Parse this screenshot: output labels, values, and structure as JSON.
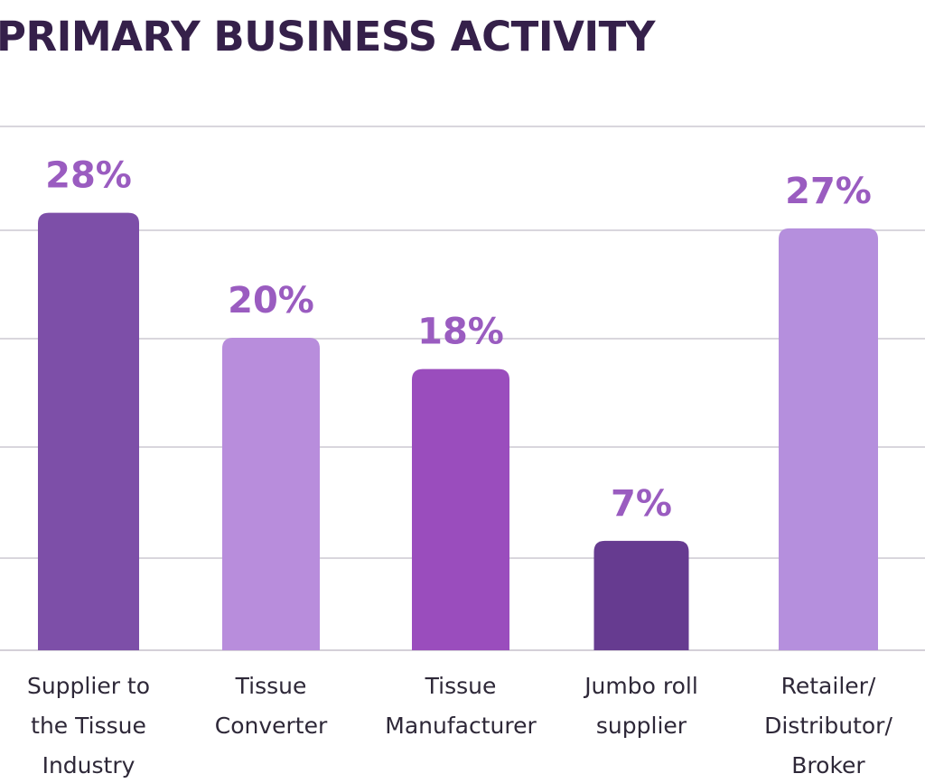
{
  "chart_data": {
    "type": "bar",
    "title": "PRIMARY BUSINESS ACTIVITY",
    "categories": [
      [
        "Supplier to",
        "the Tissue",
        "Industry"
      ],
      [
        "Tissue",
        "Converter"
      ],
      [
        "Tissue",
        "Manufacturer"
      ],
      [
        "Jumbo roll",
        "supplier"
      ],
      [
        "Retailer/",
        "Distributor/",
        "Broker"
      ]
    ],
    "values": [
      28,
      20,
      18,
      7,
      27
    ],
    "data_labels": [
      "28%",
      "20%",
      "18%",
      "7%",
      "27%"
    ],
    "bar_colors": [
      "#7d4fa8",
      "#b88ddc",
      "#9a4dbd",
      "#663b90",
      "#b58fdd"
    ],
    "label_color": "#9a5cc0",
    "title_color": "#35204a",
    "grid": true,
    "xlabel": "",
    "ylabel": ""
  }
}
